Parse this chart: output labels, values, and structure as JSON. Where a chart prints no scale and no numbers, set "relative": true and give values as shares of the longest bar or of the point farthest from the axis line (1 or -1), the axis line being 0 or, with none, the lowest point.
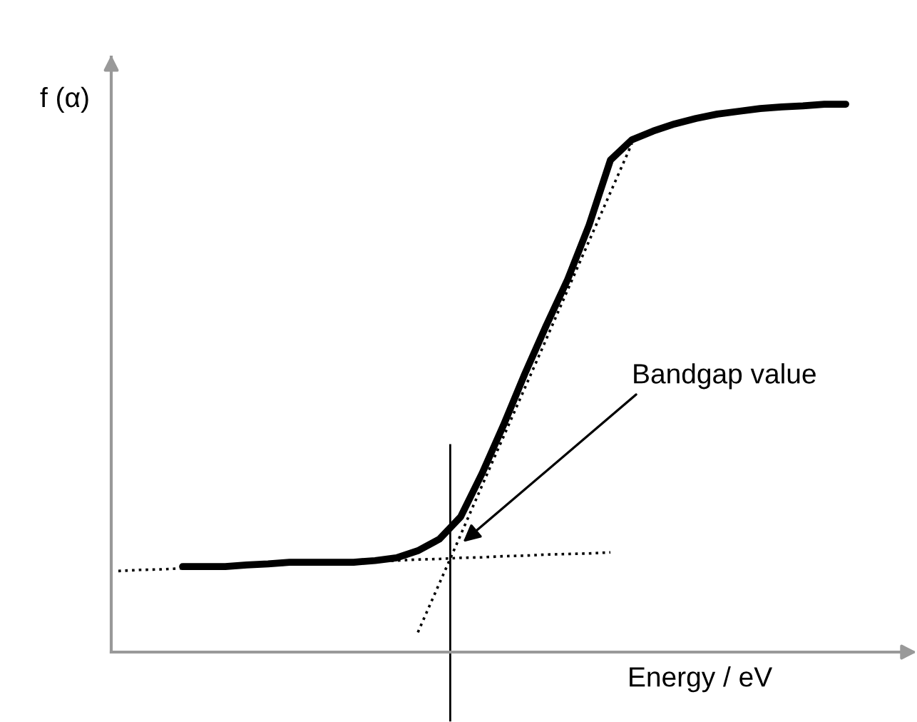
{
  "chart_data": {
    "type": "line",
    "relative": true,
    "ylabel": "f (α)",
    "xlabel": "Energy / eV",
    "categories": [
      null,
      null,
      null,
      null,
      null,
      null,
      null,
      null,
      null,
      null,
      null,
      null,
      null,
      null,
      null,
      null,
      null,
      null,
      null,
      null,
      null,
      null,
      null,
      null,
      null,
      null,
      null,
      null,
      null,
      null,
      null,
      null,
      null,
      null,
      null
    ],
    "series": [
      {
        "color": "#000000",
        "line_style": "solid",
        "values": [
          null,
          null,
          null,
          0.156,
          0.156,
          0.156,
          0.159,
          0.161,
          0.164,
          0.164,
          0.164,
          0.164,
          0.167,
          0.172,
          0.185,
          0.206,
          0.247,
          0.326,
          0.414,
          0.508,
          0.596,
          0.68,
          0.779,
          0.898,
          0.935,
          0.951,
          0.964,
          0.974,
          0.982,
          0.987,
          0.992,
          0.995,
          0.997,
          1,
          1
        ]
      },
      {
        "color": "#000000",
        "line_style": "dotted",
        "values": [
          0.148,
          0.15,
          0.151,
          0.153,
          0.154,
          0.156,
          0.157,
          0.159,
          0.16,
          0.162,
          0.163,
          0.164,
          0.166,
          0.167,
          0.169,
          0.17,
          0.172,
          0.173,
          0.175,
          0.176,
          0.178,
          0.179,
          0.18,
          0.182,
          null,
          null,
          null,
          null,
          null,
          null,
          null,
          null,
          null,
          null,
          null
        ]
      },
      {
        "color": "#000000",
        "line_style": "dotted",
        "values": [
          null,
          null,
          null,
          null,
          null,
          null,
          null,
          null,
          null,
          null,
          null,
          null,
          null,
          null,
          0.036,
          0.125,
          0.214,
          0.304,
          0.393,
          0.482,
          0.571,
          0.661,
          0.75,
          0.839,
          0.928,
          null,
          null,
          null,
          null,
          null,
          null,
          null,
          null,
          null,
          null
        ]
      }
    ],
    "annotations": [
      "Bandgap value"
    ]
  }
}
